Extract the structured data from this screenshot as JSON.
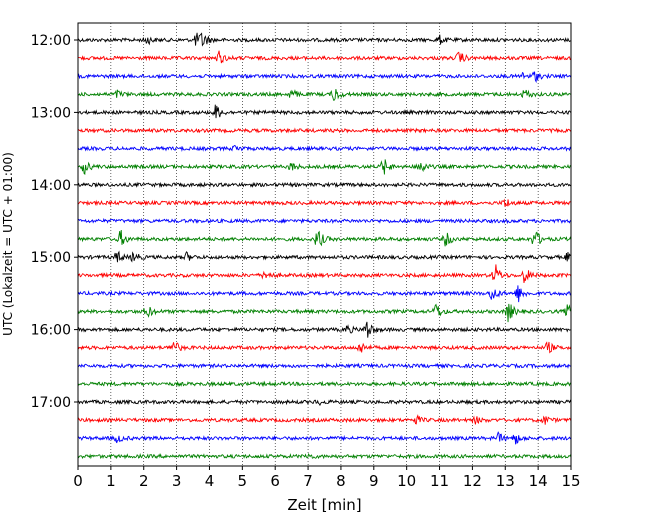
{
  "chart_data": {
    "type": "line",
    "chart_kind": "helicorder seismogram",
    "title": "",
    "xlabel": "Zeit  [min]",
    "ylabel": "UTC (Lokalzeit = UTC + 01:00)",
    "xlim": [
      0,
      15
    ],
    "x_ticks": [
      "0",
      "1",
      "2",
      "3",
      "4",
      "5",
      "6",
      "7",
      "8",
      "9",
      "10",
      "11",
      "12",
      "13",
      "14",
      "15"
    ],
    "grid": "vertical dotted lines at each minute",
    "legend": "none",
    "trace_interval_minutes": 15,
    "color_cycle": [
      "#000000",
      "#ff0000",
      "#0000ff",
      "#008000"
    ],
    "y_ticks": [
      "12:00",
      "13:00",
      "14:00",
      "15:00",
      "16:00",
      "17:00"
    ],
    "series": [
      {
        "start": "12:00",
        "color": "#000000",
        "events": [
          {
            "t": 2.1,
            "amp": 0.5
          },
          {
            "t": 3.6,
            "amp": 0.8
          },
          {
            "t": 3.8,
            "amp": 0.9
          },
          {
            "t": 11.0,
            "amp": 0.5
          }
        ]
      },
      {
        "start": "12:15",
        "color": "#ff0000",
        "events": [
          {
            "t": 4.3,
            "amp": 0.8
          },
          {
            "t": 11.6,
            "amp": 0.8
          }
        ]
      },
      {
        "start": "12:30",
        "color": "#0000ff",
        "events": [
          {
            "t": 13.9,
            "amp": 0.6
          },
          {
            "t": 13.5,
            "amp": 0.4
          }
        ]
      },
      {
        "start": "12:45",
        "color": "#008000",
        "events": [
          {
            "t": 1.2,
            "amp": 0.4
          },
          {
            "t": 6.5,
            "amp": 0.6
          },
          {
            "t": 7.8,
            "amp": 0.9
          },
          {
            "t": 13.6,
            "amp": 0.6
          }
        ]
      },
      {
        "start": "13:00",
        "color": "#000000",
        "events": [
          {
            "t": 4.2,
            "amp": 1.0
          }
        ]
      },
      {
        "start": "13:15",
        "color": "#ff0000",
        "events": []
      },
      {
        "start": "13:30",
        "color": "#0000ff",
        "events": [
          {
            "t": 4.8,
            "amp": 0.4
          }
        ]
      },
      {
        "start": "13:45",
        "color": "#008000",
        "events": [
          {
            "t": 0.2,
            "amp": 0.8
          },
          {
            "t": 6.5,
            "amp": 0.5
          },
          {
            "t": 9.3,
            "amp": 1.0
          },
          {
            "t": 10.4,
            "amp": 1.0
          }
        ]
      },
      {
        "start": "14:00",
        "color": "#000000",
        "events": []
      },
      {
        "start": "14:15",
        "color": "#ff0000",
        "events": [
          {
            "t": 13.0,
            "amp": 0.6
          }
        ]
      },
      {
        "start": "14:30",
        "color": "#0000ff",
        "events": []
      },
      {
        "start": "14:45",
        "color": "#008000",
        "events": [
          {
            "t": 1.3,
            "amp": 1.0
          },
          {
            "t": 7.3,
            "amp": 1.3
          },
          {
            "t": 11.2,
            "amp": 0.9
          },
          {
            "t": 13.9,
            "amp": 1.3
          }
        ]
      },
      {
        "start": "15:00",
        "color": "#000000",
        "events": [
          {
            "t": 1.2,
            "amp": 0.7
          },
          {
            "t": 1.7,
            "amp": 0.6
          },
          {
            "t": 3.3,
            "amp": 0.5
          },
          {
            "t": 14.9,
            "amp": 0.5
          }
        ]
      },
      {
        "start": "15:15",
        "color": "#ff0000",
        "events": [
          {
            "t": 5.7,
            "amp": 0.6
          },
          {
            "t": 12.7,
            "amp": 1.3
          },
          {
            "t": 13.6,
            "amp": 1.0
          }
        ]
      },
      {
        "start": "15:30",
        "color": "#0000ff",
        "events": [
          {
            "t": 12.6,
            "amp": 1.0
          },
          {
            "t": 13.4,
            "amp": 1.0
          }
        ]
      },
      {
        "start": "15:45",
        "color": "#008000",
        "events": [
          {
            "t": 2.1,
            "amp": 0.8
          },
          {
            "t": 10.9,
            "amp": 1.0
          },
          {
            "t": 13.1,
            "amp": 1.3
          },
          {
            "t": 14.9,
            "amp": 0.8
          }
        ]
      },
      {
        "start": "16:00",
        "color": "#000000",
        "events": [
          {
            "t": 8.2,
            "amp": 0.5
          },
          {
            "t": 8.8,
            "amp": 1.3
          }
        ]
      },
      {
        "start": "16:15",
        "color": "#ff0000",
        "events": [
          {
            "t": 2.9,
            "amp": 1.0
          },
          {
            "t": 8.6,
            "amp": 0.7
          },
          {
            "t": 14.3,
            "amp": 0.7
          }
        ]
      },
      {
        "start": "16:30",
        "color": "#0000ff",
        "events": []
      },
      {
        "start": "16:45",
        "color": "#008000",
        "events": []
      },
      {
        "start": "17:00",
        "color": "#000000",
        "events": [
          {
            "t": 7.3,
            "amp": 0.3
          }
        ]
      },
      {
        "start": "17:15",
        "color": "#ff0000",
        "events": [
          {
            "t": 10.3,
            "amp": 0.5
          },
          {
            "t": 12.1,
            "amp": 0.4
          },
          {
            "t": 14.2,
            "amp": 0.5
          }
        ]
      },
      {
        "start": "17:30",
        "color": "#0000ff",
        "events": [
          {
            "t": 1.2,
            "amp": 0.5
          },
          {
            "t": 12.8,
            "amp": 0.6
          },
          {
            "t": 13.3,
            "amp": 0.7
          }
        ]
      },
      {
        "start": "17:45",
        "color": "#008000",
        "events": [
          {
            "t": 7.0,
            "amp": 0.3
          }
        ]
      }
    ]
  }
}
